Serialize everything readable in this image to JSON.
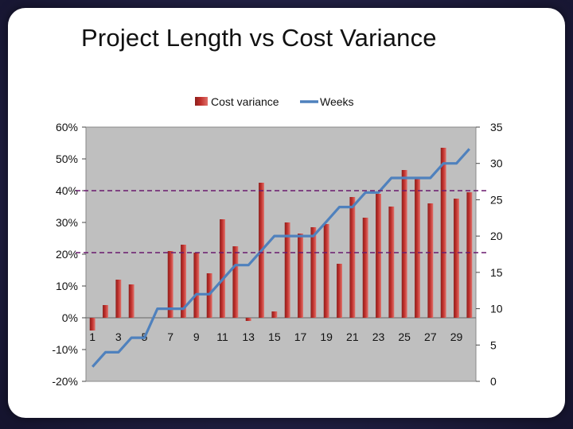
{
  "slide": {
    "title": "Project Length vs Cost Variance"
  },
  "chart_data": {
    "type": "bar",
    "title": "Project Length vs Cost Variance",
    "categories": [
      1,
      2,
      3,
      4,
      5,
      6,
      7,
      8,
      9,
      10,
      11,
      12,
      13,
      14,
      15,
      16,
      17,
      18,
      19,
      20,
      21,
      22,
      23,
      24,
      25,
      26,
      27,
      28,
      29,
      30
    ],
    "x_tick_labels": [
      "1",
      "3",
      "5",
      "7",
      "9",
      "11",
      "13",
      "15",
      "17",
      "19",
      "21",
      "23",
      "25",
      "27",
      "29"
    ],
    "series": [
      {
        "name": "Cost variance",
        "type": "bar",
        "axis": "left",
        "color": "#c0302c",
        "values": [
          -0.04,
          0.04,
          0.12,
          0.105,
          0.0,
          0.0,
          0.21,
          0.23,
          0.205,
          0.14,
          0.31,
          0.225,
          -0.01,
          0.425,
          0.02,
          0.3,
          0.265,
          0.285,
          0.295,
          0.17,
          0.38,
          0.315,
          0.39,
          0.35,
          0.465,
          0.44,
          0.36,
          0.535,
          0.375,
          0.395
        ]
      },
      {
        "name": "Weeks",
        "type": "line",
        "axis": "right",
        "color": "#4f81bd",
        "values": [
          2,
          4,
          4,
          6,
          6,
          10,
          10,
          10,
          12,
          12,
          14,
          16,
          16,
          18,
          20,
          20,
          20,
          20,
          22,
          24,
          24,
          26,
          26,
          28,
          28,
          28,
          28,
          30,
          30,
          32
        ]
      }
    ],
    "y_left": {
      "min": -0.2,
      "max": 0.6,
      "tick_labels": [
        "-20%",
        "-10%",
        "0%",
        "10%",
        "20%",
        "30%",
        "40%",
        "50%",
        "60%"
      ]
    },
    "y_right": {
      "min": 0,
      "max": 35,
      "tick_labels": [
        "0",
        "5",
        "10",
        "15",
        "20",
        "25",
        "30",
        "35"
      ]
    },
    "reference_lines": [
      {
        "axis": "left",
        "value": 0.4,
        "style": "dashed",
        "color": "#6a1a6e"
      },
      {
        "axis": "left",
        "value": 0.205,
        "style": "dashed",
        "color": "#6a1a6e"
      }
    ],
    "plot_background": "#bfbfbf",
    "grid": false,
    "legend_position": "top"
  }
}
